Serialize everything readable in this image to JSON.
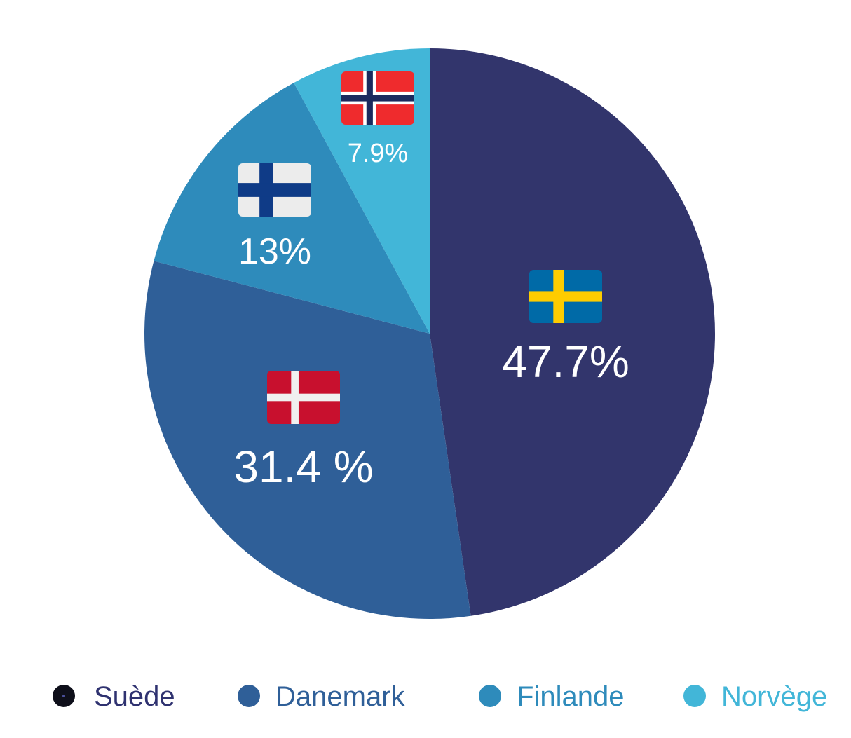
{
  "chart_data": {
    "type": "pie",
    "title": "",
    "slices": [
      {
        "label": "Suède",
        "value": 47.7,
        "display": "47.7%",
        "color": "#32356c",
        "legend_dot_color": "#0e0f1a",
        "legend_text_color": "#2f3270",
        "flag": "sweden-flag"
      },
      {
        "label": "Danemark",
        "value": 31.4,
        "display": "31.4 %",
        "color": "#2f5f98",
        "legend_dot_color": "#2f5f98",
        "legend_text_color": "#2f5f98",
        "flag": "denmark-flag"
      },
      {
        "label": "Finlande",
        "value": 13.0,
        "display": "13%",
        "color": "#2e8bbb",
        "legend_dot_color": "#2e8bbb",
        "legend_text_color": "#2e8bbb",
        "flag": "finland-flag"
      },
      {
        "label": "Norvège",
        "value": 7.9,
        "display": "7.9%",
        "color": "#42b6d8",
        "legend_dot_color": "#42b6d8",
        "legend_text_color": "#42b6d8",
        "flag": "norway-flag"
      }
    ],
    "start_angle_deg": 0,
    "direction": "clockwise",
    "legend_position": "bottom"
  }
}
